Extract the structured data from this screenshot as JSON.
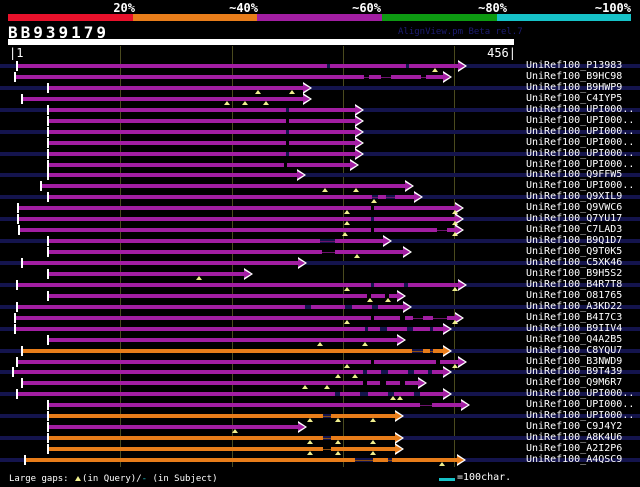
{
  "colors": {
    "background": "#000000",
    "purple": "#a21ea2",
    "orange": "#e87d1a",
    "purple_dark": "#6b126b",
    "orange_dark": "#8a4d12",
    "red": "#e8112b",
    "green": "#0d9a12",
    "cyan": "#16c2c8",
    "navy_band": "#14144d",
    "gridline_olive": "#4a4a1e",
    "gap_triangle_yellow": "#f0ef8e",
    "watermark_blue": "#1d1d72",
    "text_white": "#ffffff"
  },
  "header": {
    "query_id": "BB939179",
    "watermark": "AlignView.pm Beta rel.7"
  },
  "scale_bar": {
    "labels": [
      "20%",
      "~40%",
      "~60%",
      "~80%",
      "~100%"
    ],
    "segment_colors": [
      "#e8112b",
      "#e87d1a",
      "#a21ea2",
      "#0d9a12",
      "#16c2c8"
    ]
  },
  "ruler": {
    "start_label": "|1",
    "end_label": "456|"
  },
  "legend": {
    "prefix": "Large gaps: ",
    "query_gap_suffix": "(in Query)/",
    "subject_gap_symbol": "-",
    "subject_gap_suffix": " (in Subject)",
    "scale_text": "=100char."
  },
  "chart_data": {
    "type": "alignment-map",
    "title": "BB939179",
    "x_axis": {
      "min": 1,
      "max": 456,
      "gridlines": [
        100,
        200,
        300,
        400
      ]
    },
    "identity_legend": {
      "labels": [
        "20%",
        "~40%",
        "~60%",
        "~80%",
        "~100%"
      ],
      "colors": [
        "#e8112b",
        "#e87d1a",
        "#a21ea2",
        "#0d9a12",
        "#16c2c8"
      ]
    },
    "rows": [
      {
        "label": "UniRef100_P13983",
        "color": "purple",
        "span": [
          9,
          406
        ],
        "segs": [
          [
            17,
            327
          ],
          [
            330,
            406
          ],
          [
            409,
            458
          ]
        ],
        "tris": [
          435
        ]
      },
      {
        "label": "UniRef100_B9HC98",
        "color": "purple",
        "span": [
          7,
          392
        ],
        "segs": [
          [
            15,
            364
          ],
          [
            369,
            381
          ],
          [
            391,
            421
          ],
          [
            426,
            443
          ]
        ],
        "thin": [
          [
            364,
            443
          ]
        ]
      },
      {
        "label": "UniRef100_B9HWP9",
        "color": "purple",
        "span": [
          37,
          266
        ],
        "segs": [
          [
            48,
            303
          ]
        ],
        "tris": [
          258,
          292
        ]
      },
      {
        "label": "UniRef100_C4IYP5",
        "color": "purple",
        "span": [
          14,
          266
        ],
        "segs": [
          [
            22,
            303
          ]
        ],
        "tris": [
          227,
          245,
          266
        ]
      },
      {
        "label": "UniRef100_UPI000..",
        "color": "purple",
        "span": [
          37,
          313
        ],
        "segs": [
          [
            48,
            286
          ],
          [
            289,
            355
          ]
        ]
      },
      {
        "label": "UniRef100_UPI000..",
        "color": "purple",
        "span": [
          37,
          313
        ],
        "segs": [
          [
            48,
            286
          ],
          [
            289,
            355
          ]
        ]
      },
      {
        "label": "UniRef100_UPI000..",
        "color": "purple",
        "span": [
          37,
          313
        ],
        "segs": [
          [
            48,
            286
          ],
          [
            289,
            355
          ]
        ]
      },
      {
        "label": "UniRef100_UPI000..",
        "color": "purple",
        "span": [
          37,
          313
        ],
        "segs": [
          [
            48,
            286
          ],
          [
            289,
            355
          ]
        ]
      },
      {
        "label": "UniRef100_UPI000..",
        "color": "purple",
        "span": [
          37,
          313
        ],
        "segs": [
          [
            48,
            286
          ],
          [
            289,
            355
          ]
        ]
      },
      {
        "label": "UniRef100_UPI000..",
        "color": "purple",
        "span": [
          37,
          309
        ],
        "segs": [
          [
            48,
            284
          ],
          [
            287,
            350
          ]
        ]
      },
      {
        "label": "UniRef100_Q9FFW5",
        "color": "purple",
        "span": [
          37,
          261
        ],
        "segs": [
          [
            48,
            297
          ]
        ]
      },
      {
        "label": "UniRef100_UPI000..",
        "color": "purple",
        "span": [
          31,
          358
        ],
        "segs": [
          [
            41,
            405
          ]
        ],
        "tris": [
          325,
          356
        ]
      },
      {
        "label": "UniRef100_Q9XIL9",
        "color": "purple",
        "span": [
          37,
          366
        ],
        "segs": [
          [
            48,
            372
          ],
          [
            378,
            386
          ],
          [
            395,
            414
          ]
        ],
        "thin": [
          [
            372,
            414
          ]
        ],
        "tris": [
          374
        ]
      },
      {
        "label": "UniRef100_Q9VWC6",
        "color": "purple",
        "span": [
          10,
          403
        ],
        "segs": [
          [
            18,
            371
          ],
          [
            374,
            455
          ]
        ],
        "tris": [
          347,
          455
        ]
      },
      {
        "label": "UniRef100_Q7YU17",
        "color": "purple",
        "span": [
          10,
          403
        ],
        "segs": [
          [
            18,
            371
          ],
          [
            374,
            455
          ]
        ],
        "tris": [
          347,
          455
        ]
      },
      {
        "label": "UniRef100_C7LAD3",
        "color": "purple",
        "span": [
          11,
          403
        ],
        "segs": [
          [
            19,
            371
          ],
          [
            374,
            437
          ],
          [
            447,
            455
          ]
        ],
        "thin": [
          [
            437,
            447
          ]
        ],
        "tris": [
          345,
          455
        ]
      },
      {
        "label": "UniRef100_B9Q1D7",
        "color": "purple",
        "span": [
          37,
          338
        ],
        "segs": [
          [
            48,
            320
          ],
          [
            335,
            383
          ]
        ],
        "thin": [
          [
            320,
            335
          ]
        ]
      },
      {
        "label": "UniRef100_Q9T0K5",
        "color": "purple",
        "span": [
          37,
          356
        ],
        "segs": [
          [
            48,
            322
          ],
          [
            335,
            403
          ]
        ],
        "thin": [
          [
            322,
            335
          ]
        ],
        "tris": [
          357
        ]
      },
      {
        "label": "UniRef100_C5XK46",
        "color": "purple",
        "span": [
          14,
          262
        ],
        "segs": [
          [
            22,
            298
          ]
        ]
      },
      {
        "label": "UniRef100_B9H5S2",
        "color": "purple",
        "span": [
          37,
          213
        ],
        "segs": [
          [
            48,
            244
          ]
        ],
        "tris": [
          199
        ]
      },
      {
        "label": "UniRef100_B4R7T8",
        "color": "purple",
        "span": [
          9,
          406
        ],
        "segs": [
          [
            17,
            371
          ],
          [
            374,
            404
          ],
          [
            408,
            458
          ]
        ],
        "tris": [
          347,
          455
        ]
      },
      {
        "label": "UniRef100_O81765",
        "color": "purple",
        "span": [
          37,
          351
        ],
        "segs": [
          [
            48,
            367
          ],
          [
            371,
            385
          ],
          [
            389,
            397
          ]
        ],
        "tris": [
          370,
          388
        ]
      },
      {
        "label": "UniRef100_A3KD22",
        "color": "purple",
        "span": [
          9,
          356
        ],
        "segs": [
          [
            17,
            305
          ],
          [
            311,
            345
          ],
          [
            352,
            372
          ],
          [
            378,
            403
          ]
        ]
      },
      {
        "label": "UniRef100_B4I7C3",
        "color": "purple",
        "span": [
          7,
          403
        ],
        "segs": [
          [
            15,
            371
          ],
          [
            374,
            400
          ],
          [
            405,
            413
          ],
          [
            423,
            433
          ],
          [
            447,
            455
          ]
        ],
        "thin": [
          [
            413,
            447
          ]
        ],
        "tris": [
          347,
          455
        ]
      },
      {
        "label": "UniRef100_B9IIV4",
        "color": "purple",
        "span": [
          7,
          392
        ],
        "segs": [
          [
            15,
            365
          ],
          [
            368,
            380
          ],
          [
            387,
            407
          ],
          [
            413,
            430
          ],
          [
            433,
            443
          ]
        ]
      },
      {
        "label": "UniRef100_Q4A2B5",
        "color": "purple",
        "span": [
          37,
          351
        ],
        "segs": [
          [
            48,
            397
          ]
        ],
        "tris": [
          320,
          365
        ]
      },
      {
        "label": "UniRef100_C8YQU7",
        "color": "orange",
        "span": [
          14,
          392
        ],
        "segs": [
          [
            22,
            412
          ],
          [
            423,
            430
          ],
          [
            433,
            443
          ]
        ],
        "thin": [
          [
            412,
            443
          ]
        ]
      },
      {
        "label": "UniRef100_B3NWD9",
        "color": "purple",
        "span": [
          9,
          406
        ],
        "segs": [
          [
            17,
            371
          ],
          [
            374,
            436
          ],
          [
            440,
            458
          ]
        ],
        "tris": [
          347,
          455
        ]
      },
      {
        "label": "UniRef100_B9T439",
        "color": "purple",
        "span": [
          6,
          392
        ],
        "segs": [
          [
            13,
            363
          ],
          [
            367,
            381
          ],
          [
            388,
            408
          ],
          [
            414,
            428
          ],
          [
            432,
            443
          ]
        ],
        "tris": [
          338,
          355
        ]
      },
      {
        "label": "UniRef100_Q9M6R7",
        "color": "purple",
        "span": [
          14,
          370
        ],
        "segs": [
          [
            22,
            363
          ],
          [
            367,
            380
          ],
          [
            386,
            400
          ],
          [
            405,
            418
          ]
        ],
        "tris": [
          305,
          327
        ]
      },
      {
        "label": "UniRef100_UPI000..",
        "color": "purple",
        "span": [
          9,
          392
        ],
        "segs": [
          [
            17,
            335
          ],
          [
            340,
            360
          ],
          [
            368,
            388
          ],
          [
            394,
            414
          ],
          [
            420,
            443
          ]
        ],
        "tris": [
          393,
          400
        ]
      },
      {
        "label": "UniRef100_UPI000..",
        "color": "purple",
        "span": [
          37,
          408
        ],
        "segs": [
          [
            48,
            420
          ],
          [
            432,
            461
          ]
        ],
        "thin": [
          [
            420,
            432
          ]
        ]
      },
      {
        "label": "UniRef100_UPI000..",
        "color": "orange",
        "span": [
          37,
          349
        ],
        "segs": [
          [
            48,
            323
          ],
          [
            331,
            395
          ]
        ],
        "thin": [
          [
            323,
            331
          ]
        ],
        "tris": [
          310,
          338,
          373
        ]
      },
      {
        "label": "UniRef100_C9J4Y2",
        "color": "purple",
        "span": [
          37,
          262
        ],
        "segs": [
          [
            48,
            298
          ]
        ],
        "tris": [
          235
        ]
      },
      {
        "label": "UniRef100_A8K4U6",
        "color": "orange",
        "span": [
          37,
          349
        ],
        "segs": [
          [
            48,
            323
          ],
          [
            331,
            395
          ]
        ],
        "thin": [
          [
            323,
            331
          ]
        ],
        "tris": [
          310,
          338,
          373
        ]
      },
      {
        "label": "UniRef100_A2I2P6",
        "color": "orange",
        "span": [
          37,
          349
        ],
        "segs": [
          [
            48,
            323
          ],
          [
            331,
            395
          ]
        ],
        "thin": [
          [
            323,
            331
          ]
        ],
        "tris": [
          310,
          338,
          373
        ]
      },
      {
        "label": "UniRef100_A4QSC9",
        "color": "orange",
        "span": [
          16,
          405
        ],
        "segs": [
          [
            25,
            355
          ],
          [
            373,
            388
          ],
          [
            392,
            457
          ]
        ],
        "thin": [
          [
            355,
            392
          ]
        ],
        "tris": [
          442
        ]
      }
    ]
  }
}
